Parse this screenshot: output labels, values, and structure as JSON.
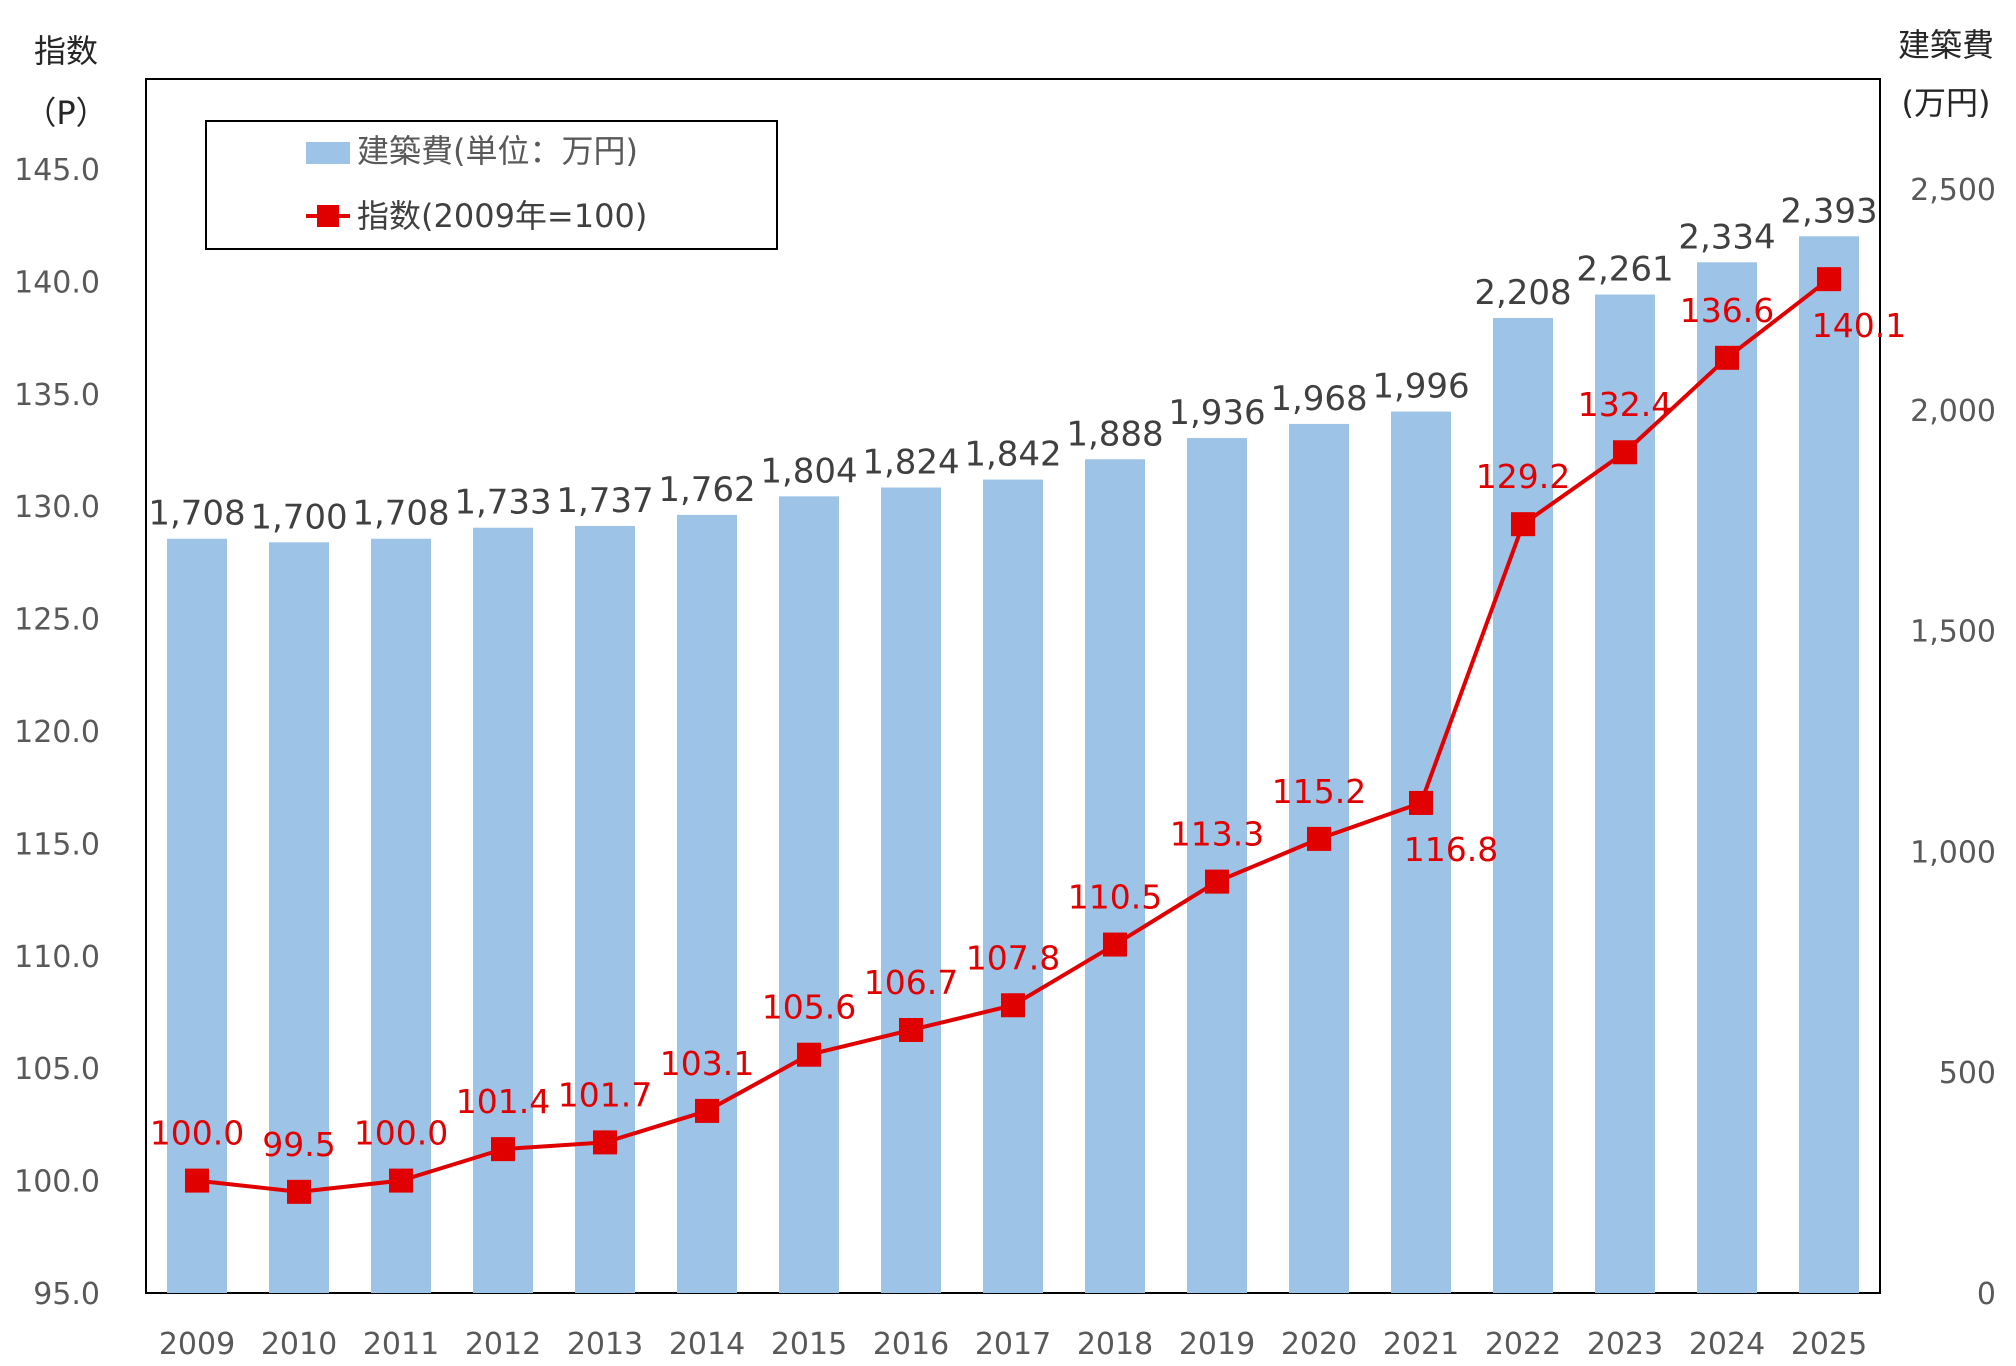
{
  "chart_data": {
    "type": "bar",
    "categories": [
      "2009",
      "2010",
      "2011",
      "2012",
      "2013",
      "2014",
      "2015",
      "2016",
      "2017",
      "2018",
      "2019",
      "2020",
      "2021",
      "2022",
      "2023",
      "2024",
      "2025"
    ],
    "series": [
      {
        "name": "建築費(単位：万円)",
        "type": "bar",
        "axis": "right",
        "color": "#9dc3e6",
        "values": [
          1708,
          1700,
          1708,
          1733,
          1737,
          1762,
          1804,
          1824,
          1842,
          1888,
          1936,
          1968,
          1996,
          2208,
          2261,
          2334,
          2393
        ],
        "labels": [
          "1,708",
          "1,700",
          "1,708",
          "1,733",
          "1,737",
          "1,762",
          "1,804",
          "1,824",
          "1,842",
          "1,888",
          "1,936",
          "1,968",
          "1,996",
          "2,208",
          "2,261",
          "2,334",
          "2,393"
        ]
      },
      {
        "name": "指数(2009年=100)",
        "type": "line",
        "axis": "left",
        "color": "#e00000",
        "marker": "square",
        "values": [
          100.0,
          99.5,
          100.0,
          101.4,
          101.7,
          103.1,
          105.6,
          106.7,
          107.8,
          110.5,
          113.3,
          115.2,
          116.8,
          129.2,
          132.4,
          136.6,
          140.1
        ],
        "labels": [
          "100.0",
          "99.5",
          "100.0",
          "101.4",
          "101.7",
          "103.1",
          "105.6",
          "106.7",
          "107.8",
          "110.5",
          "113.3",
          "115.2",
          "116.8",
          "129.2",
          "132.4",
          "136.6",
          "140.1"
        ]
      }
    ],
    "left_axis": {
      "title": "指数",
      "unit": "（P）",
      "range": [
        95,
        145
      ],
      "ticks": [
        "95.0",
        "100.0",
        "105.0",
        "110.0",
        "115.0",
        "120.0",
        "125.0",
        "130.0",
        "135.0",
        "140.0",
        "145.0"
      ]
    },
    "right_axis": {
      "title": "建築費",
      "unit": "(万円)",
      "range": [
        0,
        2750
      ],
      "ticks": [
        "0",
        "500",
        "1,000",
        "1,500",
        "2,000",
        "2,500"
      ]
    },
    "legend": {
      "position": "top-left",
      "items": [
        "建築費(単位：万円)",
        "指数(2009年=100)"
      ]
    }
  }
}
